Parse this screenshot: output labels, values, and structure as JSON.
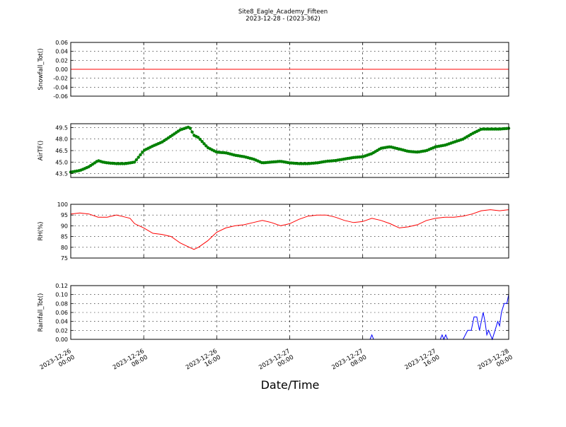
{
  "figure": {
    "title_line1": "Site8_Eagle_Academy_Fifteen",
    "title_line2": "2023-12-28 - (2023-362)",
    "xlabel": "Date/Time"
  },
  "chart_data": [
    {
      "type": "line",
      "ylabel": "Snowfall_Tot()",
      "ylim": [
        -0.06,
        0.06
      ],
      "yticks": [
        "0.06",
        "0.04",
        "0.02",
        "0.00",
        "-0.02",
        "-0.04",
        "-0.06"
      ],
      "grid": true,
      "color": "#ff0000",
      "x_hours": [
        0,
        48
      ],
      "values": [
        0,
        0
      ]
    },
    {
      "type": "line",
      "ylabel": "AirTF()",
      "ylim": [
        43.0,
        50.0
      ],
      "yticks": [
        "49.5",
        "48.0",
        "46.5",
        "45.0",
        "43.5"
      ],
      "grid": true,
      "color": "#008000",
      "markers": true,
      "x_hours": [
        0,
        1,
        2,
        3,
        3.5,
        4,
        5,
        6,
        7,
        8,
        8.5,
        9,
        10,
        11,
        12,
        13,
        13.5,
        14,
        15,
        16,
        17,
        18,
        19,
        20,
        21,
        22,
        23,
        24,
        25,
        26,
        27,
        28,
        29,
        30,
        31,
        32,
        33,
        34,
        35,
        36,
        37,
        38,
        39,
        40,
        41,
        42,
        43,
        44,
        45,
        46,
        47,
        48
      ],
      "values": [
        43.7,
        43.9,
        44.4,
        45.2,
        45.0,
        44.9,
        44.8,
        44.8,
        45.0,
        46.5,
        46.8,
        47.1,
        47.6,
        48.4,
        49.2,
        49.6,
        48.5,
        48.2,
        46.9,
        46.3,
        46.2,
        45.9,
        45.7,
        45.4,
        44.9,
        45.0,
        45.1,
        44.9,
        44.8,
        44.8,
        44.9,
        45.1,
        45.2,
        45.4,
        45.6,
        45.7,
        46.1,
        46.8,
        47.0,
        46.7,
        46.4,
        46.3,
        46.5,
        47.0,
        47.2,
        47.6,
        48.0,
        48.7,
        49.3,
        49.3,
        49.3,
        49.4
      ]
    },
    {
      "type": "line",
      "ylabel": "RH(%)",
      "ylim": [
        75,
        100
      ],
      "yticks": [
        "100",
        "95",
        "90",
        "85",
        "80",
        "75"
      ],
      "grid": true,
      "color": "#ff0000",
      "x_hours": [
        0,
        1,
        2,
        3,
        4,
        5,
        6,
        6.5,
        7,
        8,
        9,
        10,
        11,
        12,
        13,
        13.5,
        14,
        15,
        15.5,
        16,
        17,
        18,
        19,
        20,
        21,
        22,
        23,
        24,
        25,
        26,
        27,
        28,
        29,
        30,
        31,
        32,
        33,
        34,
        35,
        36,
        37,
        38,
        39,
        40,
        41,
        42,
        43,
        44,
        45,
        46,
        47,
        48
      ],
      "values": [
        95.5,
        96,
        95.5,
        94,
        94,
        95,
        94,
        93.5,
        91,
        89,
        86.5,
        86,
        85,
        82,
        80,
        79,
        80,
        83,
        85,
        87,
        89,
        90,
        90.5,
        91.5,
        92.5,
        91.5,
        90,
        91,
        93,
        94.5,
        95,
        95,
        94,
        92.5,
        91.5,
        92,
        93.5,
        92.5,
        91,
        89,
        89.5,
        90.5,
        92.5,
        93.5,
        94,
        94,
        94.5,
        95.5,
        97,
        97.5,
        97,
        97.5
      ]
    },
    {
      "type": "line",
      "ylabel": "Rainfall_Tot()",
      "ylim": [
        0.0,
        0.12
      ],
      "yticks": [
        "0.12",
        "0.10",
        "0.08",
        "0.06",
        "0.04",
        "0.02",
        "0.00"
      ],
      "grid": true,
      "color": "#0000ff",
      "x_hours": [
        0,
        32.8,
        33.0,
        33.2,
        40.5,
        40.7,
        40.9,
        41.1,
        41.3,
        41.5,
        43.0,
        43.5,
        43.9,
        44.2,
        44.5,
        44.8,
        45.0,
        45.2,
        45.4,
        45.6,
        45.8,
        46.0,
        46.2,
        46.5,
        46.8,
        47.0,
        47.2,
        47.5,
        47.8,
        48.0
      ],
      "values": [
        0,
        0,
        0.01,
        0,
        0,
        0.01,
        0,
        0.01,
        0,
        0,
        0,
        0.02,
        0.02,
        0.05,
        0.05,
        0.02,
        0.04,
        0.06,
        0.04,
        0.01,
        0.02,
        0.01,
        0.0,
        0.02,
        0.04,
        0.03,
        0.06,
        0.08,
        0.08,
        0.1
      ]
    }
  ],
  "x_axis": {
    "range_hours": [
      0,
      48
    ],
    "ticks": [
      {
        "hour": 0,
        "line1": "2023-12-26",
        "line2": "00:00"
      },
      {
        "hour": 8,
        "line1": "2023-12-26",
        "line2": "08:00"
      },
      {
        "hour": 16,
        "line1": "2023-12-26",
        "line2": "16:00"
      },
      {
        "hour": 24,
        "line1": "2023-12-27",
        "line2": "00:00"
      },
      {
        "hour": 32,
        "line1": "2023-12-27",
        "line2": "08:00"
      },
      {
        "hour": 40,
        "line1": "2023-12-27",
        "line2": "16:00"
      },
      {
        "hour": 48,
        "line1": "2023-12-28",
        "line2": "00:00"
      }
    ]
  }
}
